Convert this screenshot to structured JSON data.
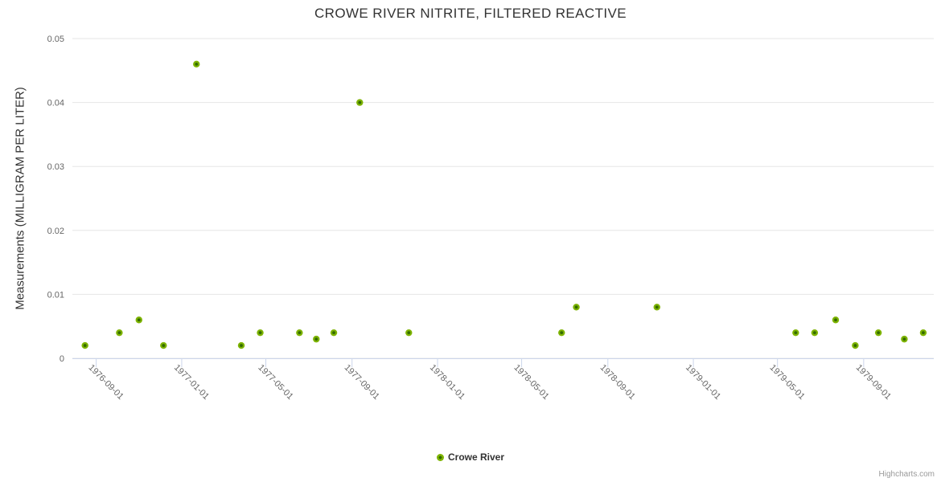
{
  "chart_data": {
    "type": "scatter",
    "title": "CROWE RIVER NITRITE, FILTERED REACTIVE",
    "xlabel": "",
    "ylabel": "Measurements (MILLIGRAM PER LITER)",
    "ylim": [
      0,
      0.05
    ],
    "y_ticks": [
      0,
      0.01,
      0.02,
      0.03,
      0.04,
      0.05
    ],
    "y_tick_labels": [
      "0",
      "0.01",
      "0.02",
      "0.03",
      "0.04",
      "0.05"
    ],
    "x_ticks": [
      "1976-09-01",
      "1977-01-01",
      "1977-05-01",
      "1977-09-01",
      "1978-01-01",
      "1978-05-01",
      "1978-09-01",
      "1979-01-01",
      "1979-05-01",
      "1979-09-01"
    ],
    "x_range": [
      "1976-07-29",
      "1979-12-10"
    ],
    "grid": "horizontal-only",
    "legend_position": "bottom-center",
    "series": [
      {
        "name": "Crowe River",
        "points": [
          {
            "date": "1976-08-16",
            "value": 0.002
          },
          {
            "date": "1976-10-04",
            "value": 0.004
          },
          {
            "date": "1976-11-01",
            "value": 0.006
          },
          {
            "date": "1976-12-06",
            "value": 0.002
          },
          {
            "date": "1977-01-22",
            "value": 0.046
          },
          {
            "date": "1977-03-27",
            "value": 0.002
          },
          {
            "date": "1977-04-23",
            "value": 0.004
          },
          {
            "date": "1977-06-18",
            "value": 0.004
          },
          {
            "date": "1977-07-12",
            "value": 0.003
          },
          {
            "date": "1977-08-06",
            "value": 0.004
          },
          {
            "date": "1977-09-12",
            "value": 0.04
          },
          {
            "date": "1977-11-21",
            "value": 0.004
          },
          {
            "date": "1978-06-27",
            "value": 0.004
          },
          {
            "date": "1978-07-18",
            "value": 0.008
          },
          {
            "date": "1978-11-10",
            "value": 0.008
          },
          {
            "date": "1979-05-27",
            "value": 0.004
          },
          {
            "date": "1979-06-23",
            "value": 0.004
          },
          {
            "date": "1979-07-23",
            "value": 0.006
          },
          {
            "date": "1979-08-20",
            "value": 0.002
          },
          {
            "date": "1979-09-22",
            "value": 0.004
          },
          {
            "date": "1979-10-29",
            "value": 0.003
          },
          {
            "date": "1979-11-25",
            "value": 0.004
          }
        ]
      }
    ],
    "credits": "Highcharts.com"
  },
  "colors": {
    "marker_outer": "#7db300",
    "marker_inner": "#336b00",
    "grid_line": "#e6e6e6",
    "axis_line": "#ccd6eb",
    "tick_label": "#666666",
    "title_text": "#333333",
    "credits_text": "#999999"
  }
}
